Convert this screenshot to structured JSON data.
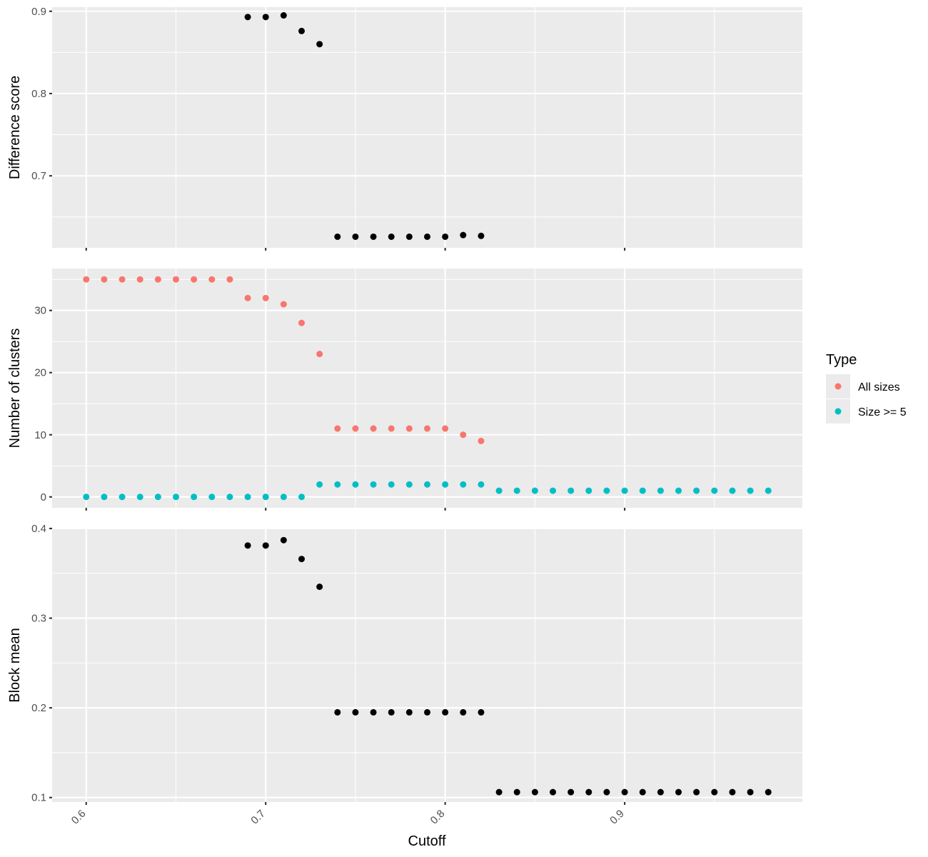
{
  "chart_data": [
    {
      "type": "scatter",
      "ylabel": "Difference score",
      "ylim": [
        0.6125,
        0.905
      ],
      "y_ticks": [
        {
          "value": 0.7,
          "label": "0.7"
        },
        {
          "value": 0.8,
          "label": "0.8"
        },
        {
          "value": 0.9,
          "label": "0.9"
        }
      ],
      "y_minor": [
        0.65,
        0.75,
        0.85
      ],
      "series": [
        {
          "color": "#000000",
          "x": [
            0.69,
            0.7,
            0.71,
            0.72,
            0.73,
            0.74,
            0.75,
            0.76,
            0.77,
            0.78,
            0.79,
            0.8,
            0.81,
            0.82
          ],
          "y": [
            0.893,
            0.893,
            0.895,
            0.876,
            0.86,
            0.626,
            0.626,
            0.626,
            0.626,
            0.626,
            0.626,
            0.626,
            0.628,
            0.627
          ]
        }
      ]
    },
    {
      "type": "scatter",
      "ylabel": "Number of clusters",
      "ylim": [
        -1.75,
        36.75
      ],
      "y_ticks": [
        {
          "value": 0,
          "label": "0"
        },
        {
          "value": 10,
          "label": "10"
        },
        {
          "value": 20,
          "label": "20"
        },
        {
          "value": 30,
          "label": "30"
        }
      ],
      "y_minor": [
        5,
        15,
        25,
        35
      ],
      "series": [
        {
          "name": "All sizes",
          "color": "#F8766D",
          "x": [
            0.6,
            0.61,
            0.62,
            0.63,
            0.64,
            0.65,
            0.66,
            0.67,
            0.68,
            0.69,
            0.7,
            0.71,
            0.72,
            0.73,
            0.74,
            0.75,
            0.76,
            0.77,
            0.78,
            0.79,
            0.8,
            0.81,
            0.82
          ],
          "y": [
            35,
            35,
            35,
            35,
            35,
            35,
            35,
            35,
            35,
            32,
            32,
            31,
            28,
            23,
            11,
            11,
            11,
            11,
            11,
            11,
            11,
            10,
            9
          ]
        },
        {
          "name": "Size >= 5",
          "color": "#00BFC4",
          "x": [
            0.6,
            0.61,
            0.62,
            0.63,
            0.64,
            0.65,
            0.66,
            0.67,
            0.68,
            0.69,
            0.7,
            0.71,
            0.72,
            0.73,
            0.74,
            0.75,
            0.76,
            0.77,
            0.78,
            0.79,
            0.8,
            0.81,
            0.82,
            0.83,
            0.84,
            0.85,
            0.86,
            0.87,
            0.88,
            0.89,
            0.9,
            0.91,
            0.92,
            0.93,
            0.94,
            0.95,
            0.96,
            0.97,
            0.98
          ],
          "y": [
            0,
            0,
            0,
            0,
            0,
            0,
            0,
            0,
            0,
            0,
            0,
            0,
            0,
            2,
            2,
            2,
            2,
            2,
            2,
            2,
            2,
            2,
            2,
            1,
            1,
            1,
            1,
            1,
            1,
            1,
            1,
            1,
            1,
            1,
            1,
            1,
            1,
            1,
            1
          ]
        }
      ]
    },
    {
      "type": "scatter",
      "ylabel": "Block mean",
      "xlabel": "Cutoff",
      "ylim": [
        0.095,
        0.4
      ],
      "y_ticks": [
        {
          "value": 0.1,
          "label": "0.1"
        },
        {
          "value": 0.2,
          "label": "0.2"
        },
        {
          "value": 0.3,
          "label": "0.3"
        },
        {
          "value": 0.4,
          "label": "0.4"
        }
      ],
      "y_minor": [
        0.15,
        0.25,
        0.35
      ],
      "series": [
        {
          "color": "#000000",
          "x": [
            0.69,
            0.7,
            0.71,
            0.72,
            0.73,
            0.74,
            0.75,
            0.76,
            0.77,
            0.78,
            0.79,
            0.8,
            0.81,
            0.82,
            0.83,
            0.84,
            0.85,
            0.86,
            0.87,
            0.88,
            0.89,
            0.9,
            0.91,
            0.92,
            0.93,
            0.94,
            0.95,
            0.96,
            0.97,
            0.98
          ],
          "y": [
            0.381,
            0.381,
            0.387,
            0.366,
            0.335,
            0.195,
            0.195,
            0.195,
            0.195,
            0.195,
            0.195,
            0.195,
            0.195,
            0.195,
            0.106,
            0.106,
            0.106,
            0.106,
            0.106,
            0.106,
            0.106,
            0.106,
            0.106,
            0.106,
            0.106,
            0.106,
            0.106,
            0.106,
            0.106,
            0.106
          ]
        }
      ]
    }
  ],
  "x_axis": {
    "xlim": [
      0.581,
      0.999
    ],
    "ticks": [
      {
        "value": 0.6,
        "label": "0.6"
      },
      {
        "value": 0.7,
        "label": "0.7"
      },
      {
        "value": 0.8,
        "label": "0.8"
      },
      {
        "value": 0.9,
        "label": "0.9"
      }
    ],
    "minor": [
      0.65,
      0.75,
      0.85,
      0.95
    ],
    "tick_label_angle": 45
  },
  "legend": {
    "title": "Type",
    "position": "right",
    "entries": [
      {
        "label": "All sizes",
        "color": "#F8766D"
      },
      {
        "label": "Size >= 5",
        "color": "#00BFC4"
      }
    ]
  },
  "xlabel": "Cutoff"
}
